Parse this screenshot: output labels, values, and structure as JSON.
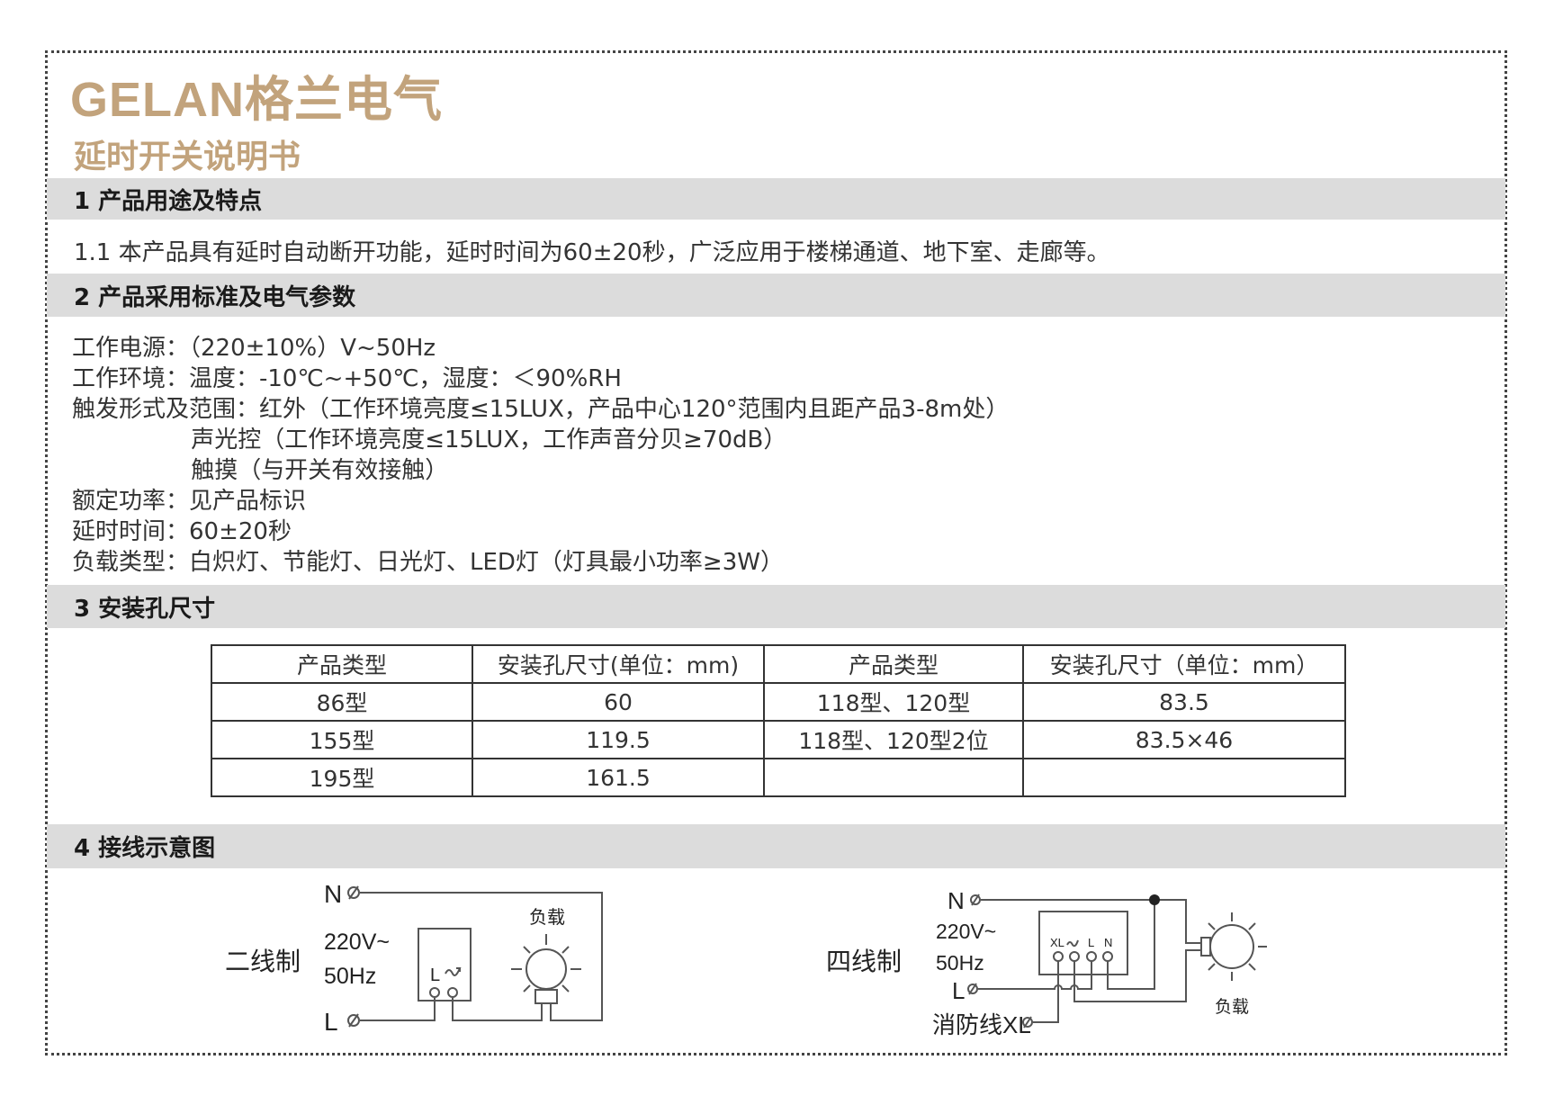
{
  "logo": "GELAN格兰电气",
  "title": "延时开关说明书",
  "sections": [
    {
      "heading": "1 产品用途及特点"
    },
    {
      "heading": "2 产品采用标准及电气参数"
    },
    {
      "heading": "3 安装孔尺寸"
    },
    {
      "heading": "4 接线示意图"
    }
  ],
  "section1": {
    "text": "1.1 本产品具有延时自动断开功能，延时时间为60±20秒，广泛应用于楼梯通道、地下室、走廊等。"
  },
  "section2": {
    "lines": [
      "工作电源：（220±10%）V~50Hz",
      "工作环境：温度：-10℃~+50℃，湿度：＜90%RH",
      "触发形式及范围：红外（工作环境亮度≤15LUX，产品中心120°范围内且距产品3-8m处）",
      "                声光控（工作环境亮度≤15LUX，工作声音分贝≥70dB）",
      "                触摸（与开关有效接触）",
      "额定功率：见产品标识",
      "延时时间：60±20秒",
      "负载类型：白炽灯、节能灯、日光灯、LED灯（灯具最小功率≥3W）"
    ]
  },
  "table": {
    "headers": [
      "产品类型",
      "安装孔尺寸(单位：mm)",
      "产品类型",
      "安装孔尺寸（单位：mm）"
    ],
    "rows": [
      [
        "86型",
        "60",
        "118型、120型",
        "83.5"
      ],
      [
        "155型",
        "119.5",
        "118型、120型2位",
        "83.5×46"
      ],
      [
        "195型",
        "161.5",
        "",
        ""
      ]
    ]
  },
  "diagram2wire": {
    "label": "二线制",
    "n": "N",
    "l": "L",
    "voltage": "220V~",
    "freq": "50Hz",
    "load": "负载",
    "switch_l": "L"
  },
  "diagram4wire": {
    "label": "四线制",
    "n": "N",
    "l": "L",
    "voltage": "220V~",
    "freq": "50Hz",
    "load": "负载",
    "fire": "消防线XL",
    "t_xl": "XL",
    "t_l": "L",
    "t_n": "N"
  },
  "colors": {
    "brand": "#c2a37c",
    "bar": "#dcdcdc"
  }
}
